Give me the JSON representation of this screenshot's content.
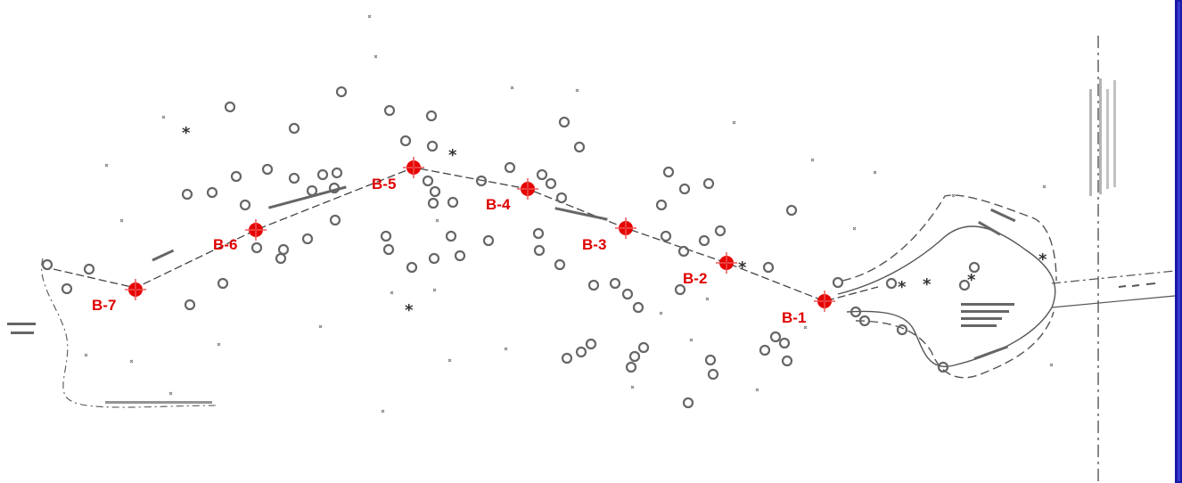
{
  "map": {
    "type": "boring location site plan",
    "colors": {
      "boring_marker": "#e60000",
      "boring_label": "#e00000",
      "linework": "#555555",
      "tree_symbols": "#666666",
      "border": "#1a1aa8"
    }
  },
  "borings": [
    {
      "id": "B-1",
      "label": "B-1"
    },
    {
      "id": "B-2",
      "label": "B-2"
    },
    {
      "id": "B-3",
      "label": "B-3"
    },
    {
      "id": "B-4",
      "label": "B-4"
    },
    {
      "id": "B-5",
      "label": "B-5"
    },
    {
      "id": "B-6",
      "label": "B-6"
    },
    {
      "id": "B-7",
      "label": "B-7"
    }
  ],
  "icons": {
    "boring_marker": "crosshair-circle-icon",
    "tree": "tree-circle-icon",
    "conifer": "asterisk-tree-icon"
  }
}
